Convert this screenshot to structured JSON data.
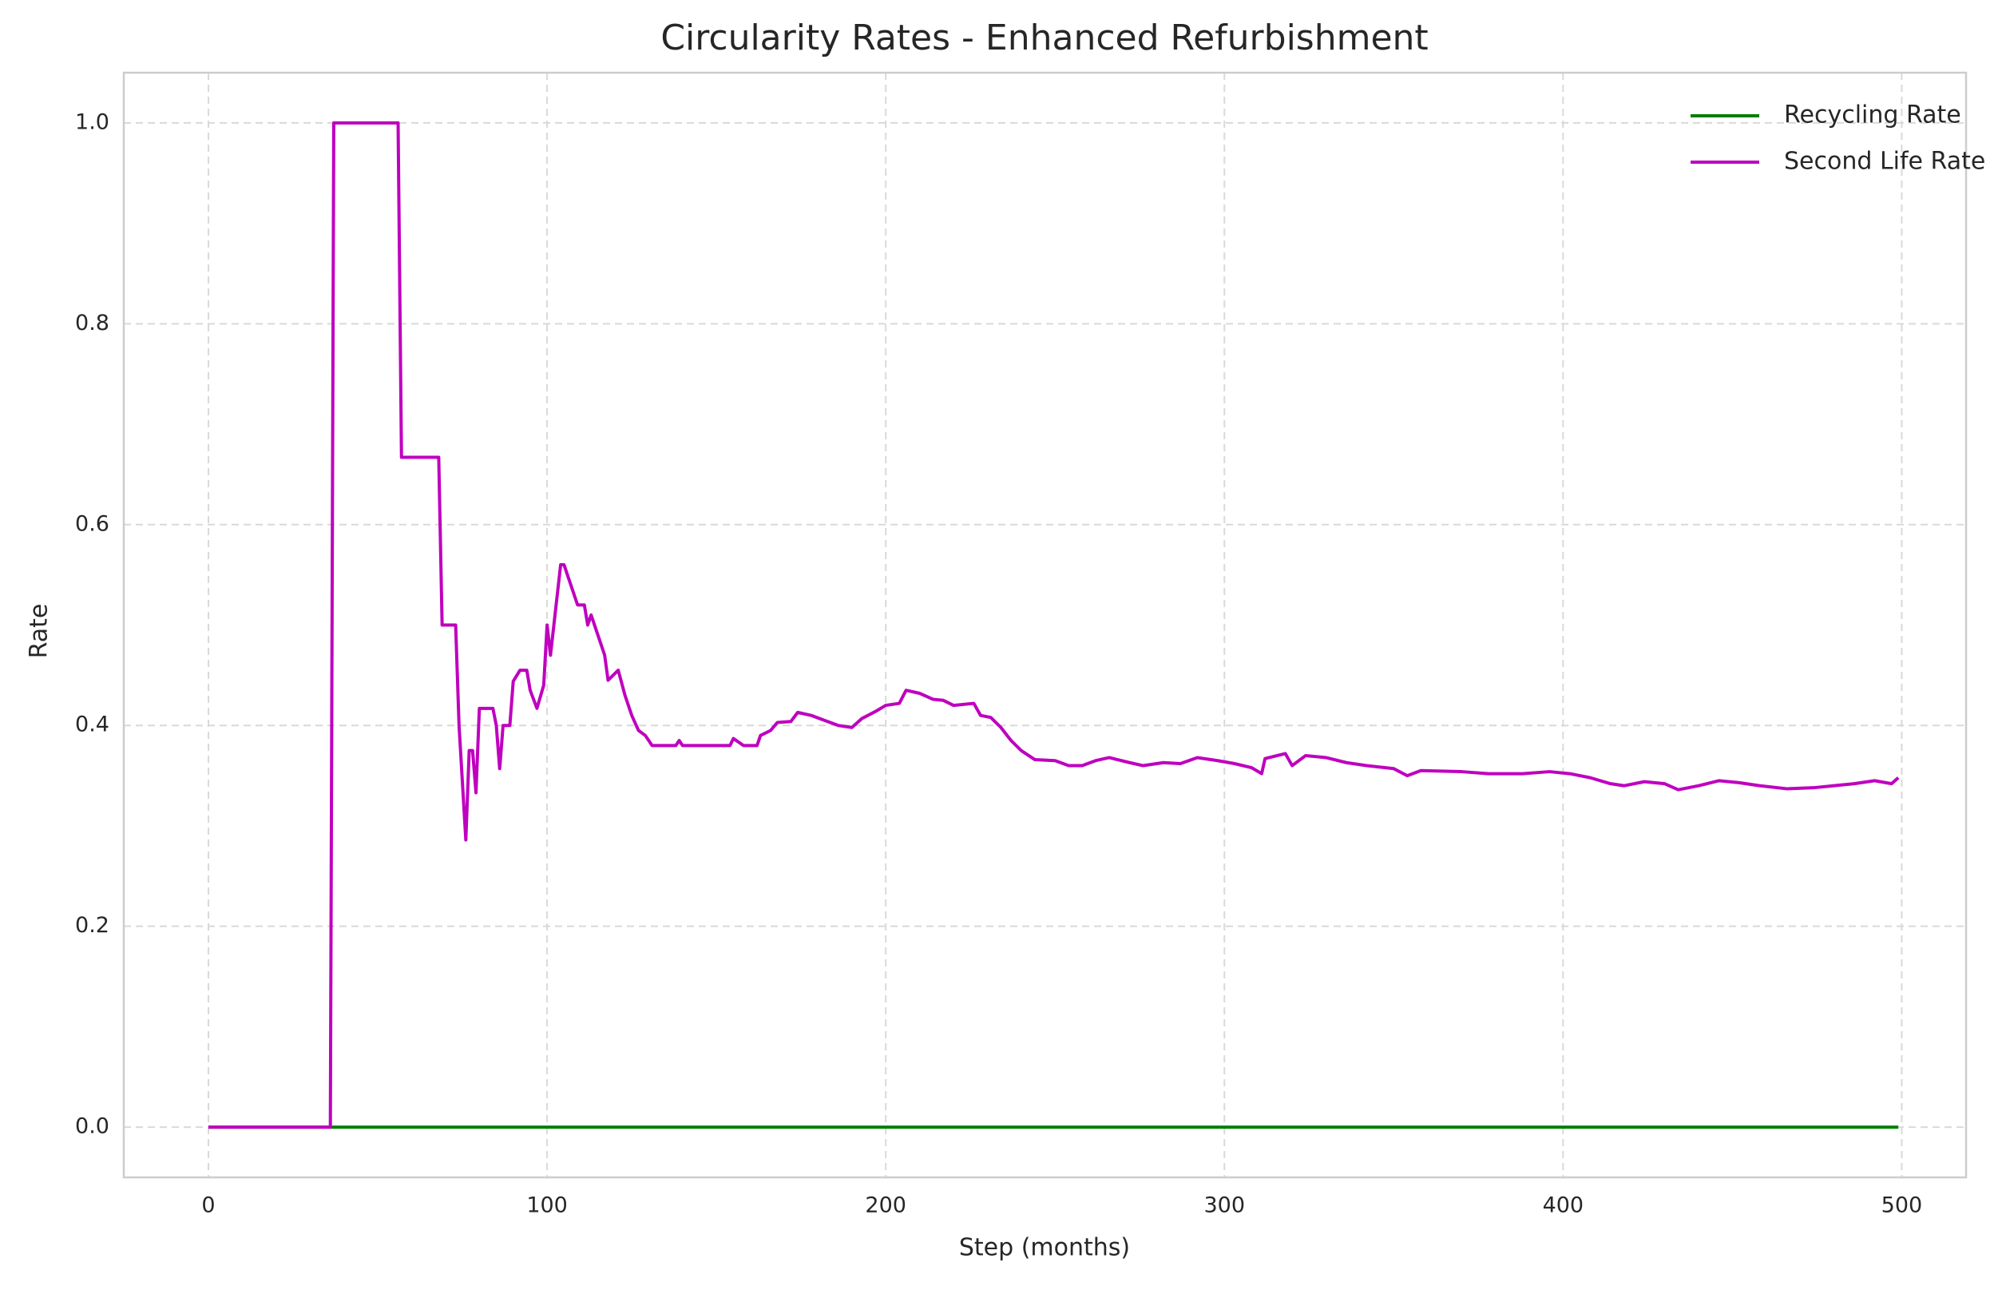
{
  "chart_data": {
    "type": "line",
    "title": "Circularity Rates - Enhanced Refurbishment",
    "x_label": "Step (months)",
    "y_label": "Rate",
    "x": [
      0,
      36,
      37,
      56,
      57,
      68,
      69,
      73,
      74,
      76,
      77,
      78,
      79,
      80,
      84,
      85,
      86,
      87,
      89,
      90,
      92,
      94,
      95,
      97,
      99,
      100,
      101,
      102,
      104,
      105,
      107,
      109,
      111,
      112,
      113,
      115,
      117,
      118,
      121,
      123,
      125,
      127,
      129,
      131,
      138,
      139,
      140,
      154,
      155,
      158,
      162,
      163,
      166,
      168,
      172,
      174,
      178,
      182,
      186,
      190,
      193,
      197,
      200,
      204,
      206,
      210,
      214,
      217,
      220,
      226,
      228,
      231,
      234,
      237,
      240,
      244,
      250,
      254,
      258,
      262,
      266,
      272,
      276,
      282,
      287,
      292,
      298,
      303,
      308,
      311,
      312,
      318,
      320,
      324,
      330,
      336,
      342,
      350,
      354,
      358,
      370,
      378,
      388,
      396,
      402,
      408,
      414,
      418,
      424,
      430,
      434,
      440,
      446,
      452,
      458,
      466,
      474,
      480,
      486,
      492,
      497,
      499
    ],
    "series": [
      {
        "name": "Recycling Rate",
        "color": "#007f00",
        "values": [
          0,
          0,
          0,
          0,
          0,
          0,
          0,
          0,
          0,
          0,
          0,
          0,
          0,
          0,
          0,
          0,
          0,
          0,
          0,
          0,
          0,
          0,
          0,
          0,
          0,
          0,
          0,
          0,
          0,
          0,
          0,
          0,
          0,
          0,
          0,
          0,
          0,
          0,
          0,
          0,
          0,
          0,
          0,
          0,
          0,
          0,
          0,
          0,
          0,
          0,
          0,
          0,
          0,
          0,
          0,
          0,
          0,
          0,
          0,
          0,
          0,
          0,
          0,
          0,
          0,
          0,
          0,
          0,
          0,
          0,
          0,
          0,
          0,
          0,
          0,
          0,
          0,
          0,
          0,
          0,
          0,
          0,
          0,
          0,
          0,
          0,
          0,
          0,
          0,
          0,
          0,
          0,
          0,
          0,
          0,
          0,
          0,
          0,
          0,
          0,
          0,
          0,
          0,
          0,
          0,
          0,
          0,
          0,
          0,
          0,
          0,
          0,
          0,
          0,
          0,
          0,
          0,
          0,
          0,
          0,
          0,
          0
        ]
      },
      {
        "name": "Second Life Rate",
        "color": "#bf00bf",
        "values": [
          0,
          0,
          1.0,
          1.0,
          0.667,
          0.667,
          0.5,
          0.5,
          0.4,
          0.286,
          0.375,
          0.375,
          0.333,
          0.417,
          0.417,
          0.4,
          0.357,
          0.4,
          0.4,
          0.444,
          0.455,
          0.455,
          0.435,
          0.417,
          0.44,
          0.5,
          0.47,
          0.5,
          0.56,
          0.56,
          0.54,
          0.52,
          0.52,
          0.5,
          0.51,
          0.49,
          0.47,
          0.445,
          0.455,
          0.43,
          0.41,
          0.395,
          0.39,
          0.38,
          0.38,
          0.385,
          0.38,
          0.38,
          0.387,
          0.38,
          0.38,
          0.39,
          0.395,
          0.403,
          0.404,
          0.413,
          0.41,
          0.405,
          0.4,
          0.398,
          0.407,
          0.414,
          0.42,
          0.422,
          0.435,
          0.432,
          0.426,
          0.425,
          0.42,
          0.422,
          0.41,
          0.408,
          0.398,
          0.385,
          0.375,
          0.366,
          0.365,
          0.36,
          0.36,
          0.365,
          0.368,
          0.363,
          0.36,
          0.363,
          0.362,
          0.368,
          0.365,
          0.362,
          0.358,
          0.352,
          0.367,
          0.372,
          0.36,
          0.37,
          0.368,
          0.363,
          0.36,
          0.357,
          0.35,
          0.355,
          0.354,
          0.352,
          0.352,
          0.354,
          0.352,
          0.348,
          0.342,
          0.34,
          0.344,
          0.342,
          0.336,
          0.34,
          0.345,
          0.343,
          0.34,
          0.337,
          0.338,
          0.34,
          0.342,
          0.345,
          0.342,
          0.348
        ]
      }
    ],
    "xlim": [
      -25,
      519
    ],
    "ylim": [
      -0.05,
      1.05
    ],
    "xticks": [
      0,
      100,
      200,
      300,
      400,
      500
    ],
    "yticks": [
      {
        "value": 0,
        "label": "0.0"
      },
      0.2,
      0.4,
      0.6,
      0.8,
      {
        "value": 1,
        "label": "1.0"
      }
    ],
    "grid": true,
    "legend": "upper right"
  }
}
